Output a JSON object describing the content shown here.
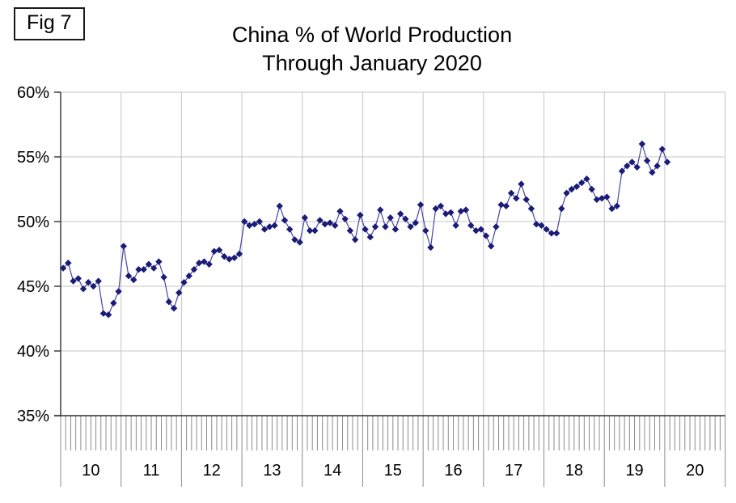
{
  "figure_label": "Fig 7",
  "title": {
    "line1": "China % of World Production",
    "line2": "Through January 2020"
  },
  "chart_data": {
    "type": "line",
    "title": "China % of World Production Through January 2020",
    "x_unit": "month",
    "x_start": "2010-01",
    "x_end": "2020-01",
    "x_year_labels": [
      "10",
      "11",
      "12",
      "13",
      "14",
      "15",
      "16",
      "17",
      "18",
      "19",
      "20"
    ],
    "y_tick_labels": [
      "60%",
      "55%",
      "50%",
      "45%",
      "40%",
      "35%"
    ],
    "y_tick_values": [
      60,
      55,
      50,
      45,
      40,
      35
    ],
    "ylim": [
      35,
      60
    ],
    "grid": true,
    "legend": "none",
    "marker": "diamond",
    "series": [
      {
        "name": "China % of world production",
        "monthly_values_2010_01_to_2020_01": [
          46.4,
          46.8,
          45.4,
          45.6,
          44.8,
          45.3,
          45.0,
          45.4,
          42.9,
          42.8,
          43.7,
          44.6,
          48.1,
          45.8,
          45.5,
          46.3,
          46.3,
          46.7,
          46.4,
          46.9,
          45.7,
          43.8,
          43.3,
          44.5,
          45.3,
          45.8,
          46.3,
          46.8,
          46.9,
          46.7,
          47.7,
          47.8,
          47.3,
          47.1,
          47.2,
          47.5,
          50.0,
          49.7,
          49.8,
          50.0,
          49.4,
          49.6,
          49.7,
          51.2,
          50.1,
          49.4,
          48.6,
          48.4,
          50.3,
          49.3,
          49.3,
          50.1,
          49.8,
          49.9,
          49.7,
          50.8,
          50.2,
          49.3,
          48.6,
          50.5,
          49.4,
          48.8,
          49.6,
          50.9,
          49.6,
          50.3,
          49.4,
          50.6,
          50.2,
          49.6,
          49.9,
          51.3,
          49.3,
          48.0,
          51.0,
          51.2,
          50.6,
          50.7,
          49.7,
          50.8,
          50.9,
          49.7,
          49.3,
          49.4,
          48.9,
          48.1,
          49.6,
          51.3,
          51.2,
          52.2,
          51.8,
          52.9,
          51.7,
          51.0,
          49.8,
          49.7,
          49.4,
          49.1,
          49.1,
          51.0,
          52.2,
          52.5,
          52.7,
          53.0,
          53.3,
          52.5,
          51.7,
          51.8,
          51.9,
          51.0,
          51.2,
          53.9,
          54.3,
          54.6,
          54.2,
          56.0,
          54.7,
          53.8,
          54.3,
          55.6,
          54.6
        ]
      }
    ],
    "colors": {
      "line": "#4545a5",
      "marker": "#1b1b78",
      "grid": "#c6c6c6",
      "axis": "#2f2f2f",
      "tick": "#8c8c8c",
      "label": "#000000"
    }
  }
}
